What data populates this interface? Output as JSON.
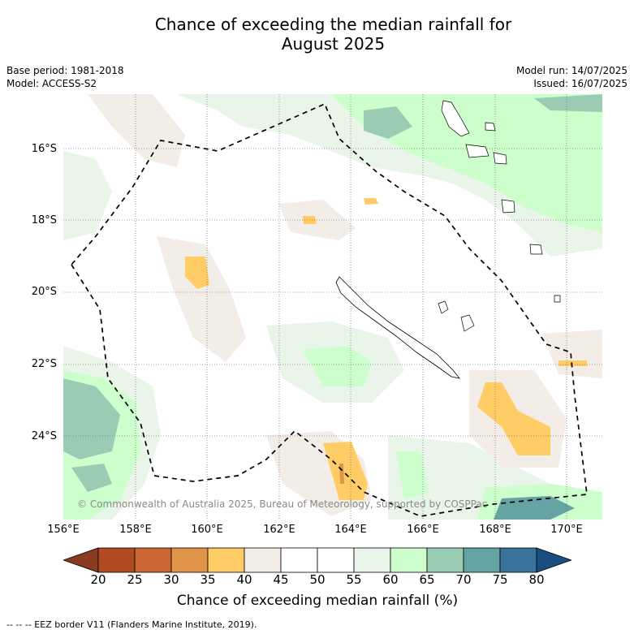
{
  "title_line1": "Chance of exceeding the median rainfall for",
  "title_line2": "August 2025",
  "base_period": "Base period: 1981-2018",
  "model": "Model: ACCESS-S2",
  "model_run": "Model run: 14/07/2025",
  "issued": "Issued: 16/07/2025",
  "latitude_labels": [
    "16°S",
    "18°S",
    "20°S",
    "22°S",
    "24°S"
  ],
  "longitude_labels": [
    "156°E",
    "158°E",
    "160°E",
    "162°E",
    "164°E",
    "166°E",
    "168°E",
    "170°E"
  ],
  "copyright": "© Commonwealth of Australia 2025, Bureau of Meteorology, supported by COSPPac",
  "colorbar": {
    "ticks": [
      "20",
      "25",
      "30",
      "35",
      "40",
      "45",
      "50",
      "55",
      "60",
      "65",
      "70",
      "75",
      "80"
    ],
    "title": "Chance of exceeding median rainfall (%)",
    "colors": [
      "#8a3a1e",
      "#b24a22",
      "#cc6633",
      "#e0944a",
      "#ffcc66",
      "#f2ede6",
      "#ffffff",
      "#ffffff",
      "#e8f5e8",
      "#ccffcc",
      "#99ccb3",
      "#66a3a3",
      "#3a7399",
      "#1a4d80"
    ]
  },
  "footnote": "--  --  -- EEZ border V11 (Flanders Marine Institute, 2019)."
}
